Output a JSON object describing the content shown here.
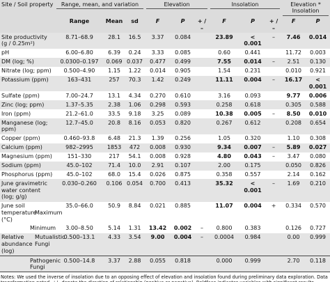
{
  "header": {
    "property": "Site / Soil property",
    "groups": [
      "Range, mean, and variation",
      "Elevation",
      "Insolation",
      "Elevation * Insolation"
    ],
    "columns": [
      "Range",
      "Mean",
      "sd",
      "F",
      "P",
      "+ / –",
      "F",
      "P",
      "+ / –",
      "F",
      "P"
    ]
  },
  "rows": [
    {
      "property": "Site productivity (g / 0.25m²)",
      "cells": [
        "8.71–68.9",
        "28.1",
        "16.5",
        "3.37",
        "0.084",
        null,
        "23.89",
        "< 0.001",
        "–",
        "7.46",
        "0.014"
      ],
      "bold": [
        6,
        7,
        9,
        10
      ]
    },
    {
      "property": "pH",
      "cells": [
        "6.00–6.80",
        "6.39",
        "0.24",
        "3.33",
        "0.085",
        null,
        "0.60",
        "0.441",
        null,
        "11.72",
        "0.003"
      ],
      "bold": []
    },
    {
      "property": "DM (log; %)",
      "cells": [
        "0.0300–0.197",
        "0.069",
        "0.037",
        "0.477",
        "0.499",
        null,
        "7.55",
        "0.014",
        "–",
        "2.51",
        "0.130"
      ],
      "bold": [
        6,
        7
      ]
    },
    {
      "property": "Nitrate (log; ppm)",
      "cells": [
        "0.500–4.90",
        "1.15",
        "1.22",
        "0.014",
        "0.905",
        null,
        "1.54",
        "0.231",
        null,
        "0.010",
        "0.921"
      ],
      "bold": []
    },
    {
      "property": "Potassium (ppm)",
      "cells": [
        "163–431",
        "257",
        "70.3",
        "1.42",
        "0.249",
        null,
        "11.11",
        "0.004",
        "–",
        "16.17",
        "< 0.001"
      ],
      "bold": [
        6,
        7,
        9,
        10
      ]
    },
    {
      "property": "Sulfate (ppm)",
      "cells": [
        "7.00–24.7",
        "13.1",
        "4.34",
        "0.270",
        "0.610",
        null,
        "3.16",
        "0.093",
        null,
        "9.77",
        "0.006"
      ],
      "bold": [
        9,
        10
      ]
    },
    {
      "property": "Zinc (log; ppm)",
      "cells": [
        "1.37–5.35",
        "2.38",
        "1.06",
        "0.298",
        "0.593",
        null,
        "0.258",
        "0.618",
        null,
        "0.305",
        "0.588"
      ],
      "bold": []
    },
    {
      "property": "Iron (ppm)",
      "cells": [
        "21.2–61.0",
        "33.5",
        "9.18",
        "3.25",
        "0.089",
        null,
        "10.38",
        "0.005",
        "–",
        "8.50",
        "0.010"
      ],
      "bold": [
        6,
        7,
        9,
        10
      ]
    },
    {
      "property": "Manganese (log; ppm)",
      "cells": [
        "12.7–45.0",
        "20.8",
        "8.16",
        "0.053",
        "0.820",
        null,
        "0.267",
        "0.612",
        null,
        "0.208",
        "0.654"
      ],
      "bold": []
    },
    {
      "property": "Copper (ppm)",
      "cells": [
        "0.460–93.8",
        "6.48",
        "21.3",
        "1.39",
        "0.256",
        null,
        "1.05",
        "0.320",
        null,
        "1.10",
        "0.308"
      ],
      "bold": []
    },
    {
      "property": "Calcium (ppm)",
      "cells": [
        "982–2995",
        "1853",
        "472",
        "0.008",
        "0.930",
        null,
        "9.34",
        "0.007",
        "–",
        "5.89",
        "0.027"
      ],
      "bold": [
        6,
        7,
        9,
        10
      ]
    },
    {
      "property": "Magnesium (ppm)",
      "cells": [
        "151–330",
        "217",
        "54.1",
        "0.008",
        "0.928",
        null,
        "4.80",
        "0.043",
        "–",
        "3.47",
        "0.080"
      ],
      "bold": [
        6,
        7
      ]
    },
    {
      "property": "Sodium (ppm)",
      "cells": [
        "45.0–102",
        "71.4",
        "10.0",
        "2.91",
        "0.107",
        null,
        "2.00",
        "0.175",
        null,
        "0.050",
        "0.826"
      ],
      "bold": []
    },
    {
      "property": "Phosphorus (ppm)",
      "cells": [
        "45.0–102",
        "68.0",
        "15.4",
        "0.026",
        "0.875",
        null,
        "0.358",
        "0.557",
        null,
        "2.14",
        "0.162"
      ],
      "bold": []
    },
    {
      "property": "June gravimetric water content (log; g/g)",
      "cells": [
        "0.030–0.260",
        "0.106",
        "0.054",
        "0.700",
        "0.413",
        null,
        "35.32",
        "< 0.001",
        "–",
        "1.69",
        "0.210"
      ],
      "bold": [
        6,
        7
      ]
    },
    {
      "property": "June soil temperature (°C)",
      "subrows": [
        {
          "name": "Maximum",
          "cells": [
            "35.0–66.0",
            "50.9",
            "8.84",
            "0.021",
            "0.885",
            null,
            "11.07",
            "0.004",
            "+",
            "0.334",
            "0.570"
          ],
          "bold": [
            6,
            7
          ]
        },
        {
          "name": "Minimum",
          "cells": [
            "3.00–8.50",
            "5.14",
            "1.31",
            "13.42",
            "0.002",
            "–",
            "0.800",
            "0.383",
            null,
            "0.126",
            "0.727"
          ],
          "bold": [
            3,
            4
          ]
        }
      ]
    },
    {
      "property": "Relative abundance (log)",
      "subrows": [
        {
          "name": "Mutualistic Fungi",
          "cells": [
            "0.500–13.1",
            "4.33",
            "3.54",
            "9.00",
            "0.004",
            "–",
            "0.0004",
            "0.984",
            null,
            "0.00",
            "0.999"
          ],
          "bold": [
            3,
            4
          ]
        },
        {
          "name": "Pathogenic Fungi",
          "cells": [
            "0.500–14.8",
            "3.37",
            "2.88",
            "0.055",
            "0.818",
            null,
            "0.000",
            "0.999",
            null,
            "2.70",
            "0.118"
          ],
          "bold": []
        }
      ]
    }
  ],
  "notes": "Notes: We used the inverse of insolation due to an opposing effect of elevation and insolation found during preliminary data exploration. Data transformation noted. +/– denote the direction of relationship (positive or negative). Boldface indicates variables with significant results."
}
